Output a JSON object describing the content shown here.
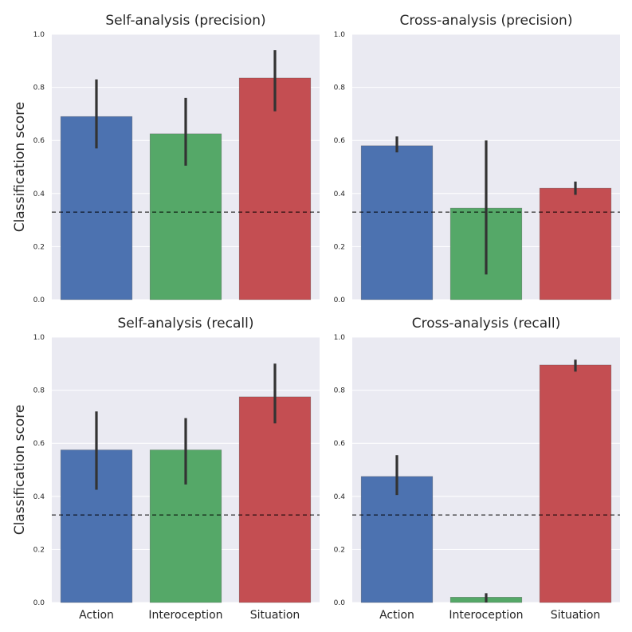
{
  "colors": {
    "background": "#eaeaf2",
    "grid": "#ffffff",
    "action": "#4c72b0",
    "interoception": "#55a868",
    "situation": "#c44e52",
    "errorbar": "#333333",
    "chance_line": "#000000"
  },
  "chart_data": [
    {
      "type": "bar",
      "title": "Self-analysis (precision)",
      "ylabel": "Classification score",
      "categories": [
        "Action",
        "Interoception",
        "Situation"
      ],
      "values": [
        0.69,
        0.625,
        0.835
      ],
      "error_low": [
        0.57,
        0.505,
        0.71
      ],
      "error_high": [
        0.83,
        0.76,
        0.94
      ],
      "chance_level": 0.33,
      "ylim": [
        0,
        1.0
      ],
      "yticks": [
        "0.0",
        "0.2",
        "0.4",
        "0.6",
        "0.8",
        "1.0"
      ],
      "grid": true
    },
    {
      "type": "bar",
      "title": "Cross-analysis (precision)",
      "ylabel": "",
      "categories": [
        "Action",
        "Interoception",
        "Situation"
      ],
      "values": [
        0.58,
        0.345,
        0.42
      ],
      "error_low": [
        0.555,
        0.095,
        0.395
      ],
      "error_high": [
        0.615,
        0.6,
        0.445
      ],
      "chance_level": 0.33,
      "ylim": [
        0,
        1.0
      ],
      "yticks": [
        "0.0",
        "0.2",
        "0.4",
        "0.6",
        "0.8",
        "1.0"
      ],
      "grid": true
    },
    {
      "type": "bar",
      "title": "Self-analysis (recall)",
      "ylabel": "Classification score",
      "categories": [
        "Action",
        "Interoception",
        "Situation"
      ],
      "values": [
        0.575,
        0.575,
        0.775
      ],
      "error_low": [
        0.425,
        0.445,
        0.675
      ],
      "error_high": [
        0.72,
        0.695,
        0.9
      ],
      "chance_level": 0.33,
      "ylim": [
        0,
        1.0
      ],
      "yticks": [
        "0.0",
        "0.2",
        "0.4",
        "0.6",
        "0.8",
        "1.0"
      ],
      "grid": true
    },
    {
      "type": "bar",
      "title": "Cross-analysis (recall)",
      "ylabel": "",
      "categories": [
        "Action",
        "Interoception",
        "Situation"
      ],
      "values": [
        0.475,
        0.02,
        0.895
      ],
      "error_low": [
        0.405,
        0.0,
        0.87
      ],
      "error_high": [
        0.555,
        0.035,
        0.915
      ],
      "chance_level": 0.33,
      "ylim": [
        0,
        1.0
      ],
      "yticks": [
        "0.0",
        "0.2",
        "0.4",
        "0.6",
        "0.8",
        "1.0"
      ],
      "grid": true
    }
  ]
}
